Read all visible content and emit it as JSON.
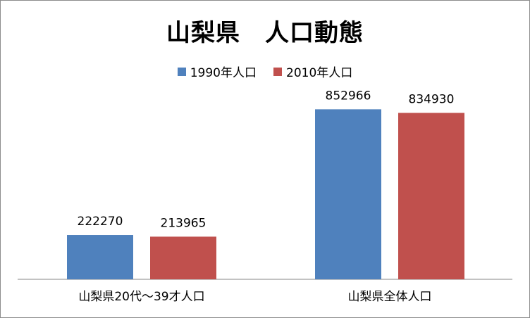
{
  "chart_data": {
    "type": "bar",
    "title": "山梨県　人口動態",
    "categories": [
      "山梨県20代～39才人口",
      "山梨県全体人口"
    ],
    "series": [
      {
        "name": "1990年人口",
        "values": [
          222270,
          852966
        ],
        "color": "#4f81bd"
      },
      {
        "name": "2010年人口",
        "values": [
          213965,
          834930
        ],
        "color": "#c0504d"
      }
    ],
    "ylim": [
      0,
      1000000
    ],
    "grid": false,
    "legend_position": "top",
    "data_labels": true
  }
}
